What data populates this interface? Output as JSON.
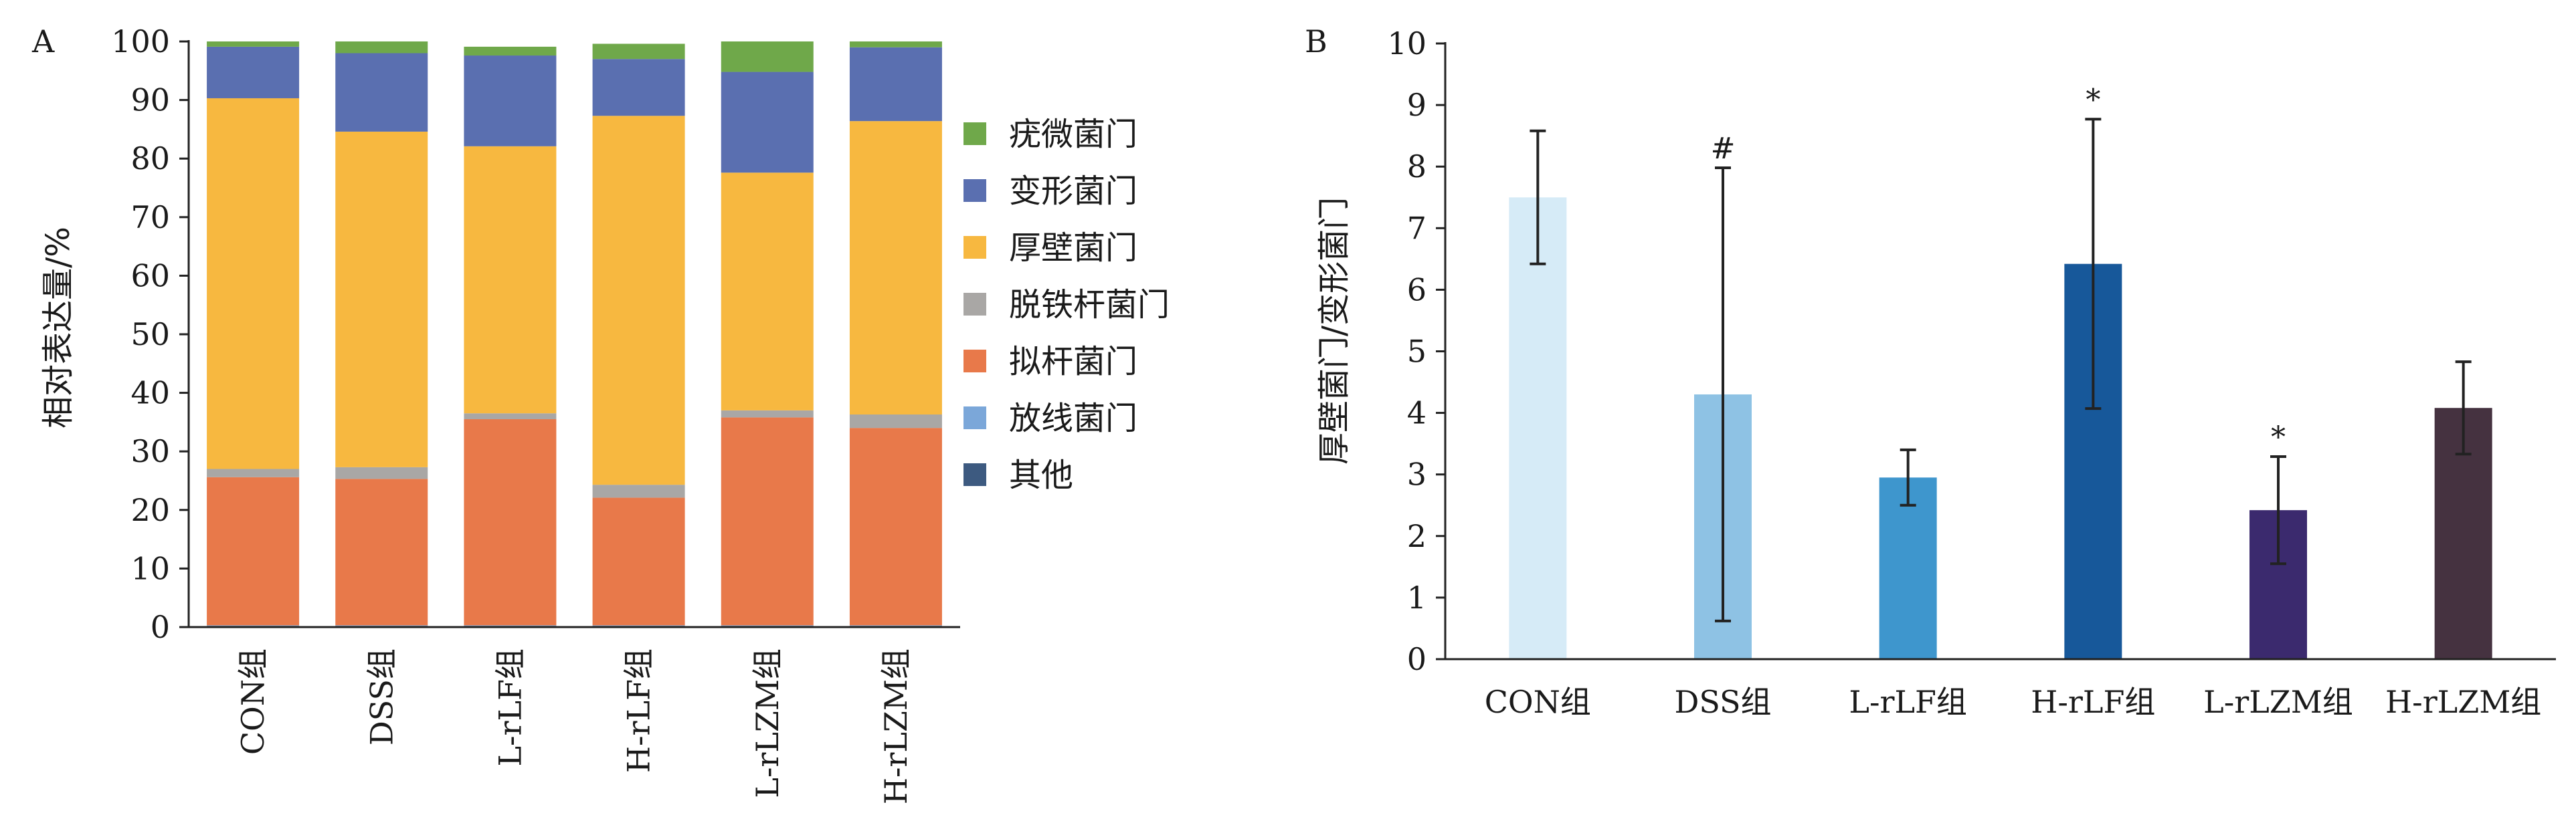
{
  "chart_data": [
    {
      "panel_label": "A",
      "type": "bar",
      "stacked": true,
      "ylabel": "相对表达量/%",
      "ylim": [
        0,
        100
      ],
      "yticks": [
        0,
        10,
        20,
        30,
        40,
        50,
        60,
        70,
        80,
        90,
        100
      ],
      "categories": [
        "CON组",
        "DSS组",
        "L-rLF组",
        "H-rLF组",
        "L-rLZM组",
        "H-rLZM组"
      ],
      "series": [
        {
          "name": "其他",
          "color": "#3d5a80",
          "values": [
            0.2,
            0.2,
            0.2,
            0.2,
            0.2,
            0.2
          ]
        },
        {
          "name": "放线菌门",
          "color": "#7ba7d9",
          "values": [
            0.1,
            0.1,
            0.1,
            0.1,
            0.1,
            0.1
          ]
        },
        {
          "name": "拟杆菌门",
          "color": "#e8794a",
          "values": [
            25.3,
            25,
            35.2,
            21.8,
            35.5,
            33.7
          ]
        },
        {
          "name": "脱铁杆菌门",
          "color": "#a9a7a5",
          "values": [
            1.4,
            2,
            1,
            2.2,
            1.2,
            2.3
          ]
        },
        {
          "name": "厚壁菌门",
          "color": "#f7b840",
          "values": [
            63.3,
            57.3,
            45.6,
            63,
            40.6,
            50.1
          ]
        },
        {
          "name": "变形菌门",
          "color": "#5a6fb0",
          "values": [
            8.8,
            13.4,
            15.5,
            9.7,
            17.2,
            12.6
          ]
        },
        {
          "name": "疣微菌门",
          "color": "#6fa84a",
          "values": [
            0.9,
            2,
            1.5,
            2.6,
            5.2,
            1
          ]
        }
      ],
      "legend_order": [
        "疣微菌门",
        "变形菌门",
        "厚壁菌门",
        "脱铁杆菌门",
        "拟杆菌门",
        "放线菌门",
        "其他"
      ],
      "legend_position": "right"
    },
    {
      "panel_label": "B",
      "type": "bar",
      "ylabel": "厚壁菌门/变形菌门",
      "ylim": [
        0,
        10
      ],
      "yticks": [
        0,
        1,
        2,
        3,
        4,
        5,
        6,
        7,
        8,
        9,
        10
      ],
      "categories": [
        "CON组",
        "DSS组",
        "L-rLF组",
        "H-rLF组",
        "L-rLZM组",
        "H-rLZM组"
      ],
      "values": [
        7.5,
        4.3,
        2.95,
        6.42,
        2.42,
        4.08
      ],
      "error": [
        1.08,
        3.68,
        0.45,
        2.35,
        0.87,
        0.75
      ],
      "colors": [
        "#d6ebf7",
        "#8ec2e4",
        "#3e96cd",
        "#17589a",
        "#3b2a6e",
        "#453240"
      ],
      "annotations": [
        "",
        "#",
        "",
        "*",
        "*",
        ""
      ]
    }
  ]
}
